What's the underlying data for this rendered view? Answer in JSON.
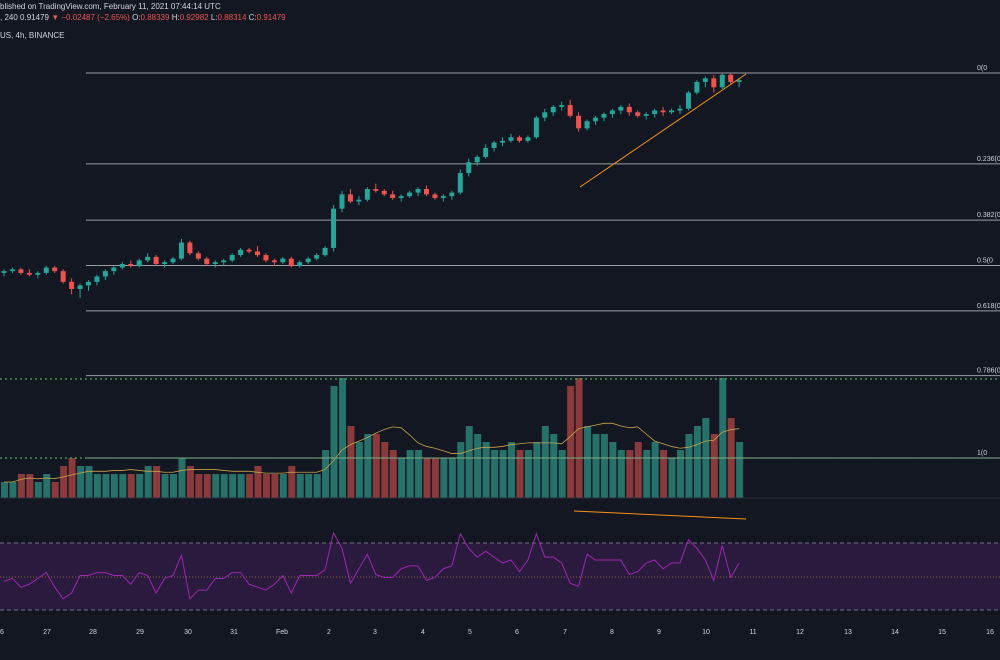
{
  "header": {
    "published": "blished on TradingView.com, February 11, 2021 07:44:14 UTC",
    "ohlc": {
      "interval": ", 240",
      "last": "0.91479",
      "change": "−0.02487 (−2.65%)",
      "open_label": "O:",
      "open": "0.88339",
      "high_label": "H:",
      "high": "0.92982",
      "low_label": "L:",
      "low": "0.88314",
      "close_label": "C:",
      "close": "0.91479"
    },
    "symbol": "US, 4h, BINANCE"
  },
  "colors": {
    "background": "#131722",
    "bull": "#26a69a",
    "bear": "#ef5350",
    "bull_volume": "#26726a",
    "bear_volume": "#8a3a3a",
    "fib_line": "#9b9ea6",
    "support": "#4caf50",
    "trendline": "#f7931a",
    "rsi_line": "#9c27b0",
    "rsi_band": "#2a1a3d"
  },
  "chart_data": {
    "type": "candlestick",
    "fib_levels": [
      {
        "level": 0,
        "label": "0(0"
      },
      {
        "level": 0.236,
        "label": "0.236(0"
      },
      {
        "level": 0.382,
        "label": "0.382(0"
      },
      {
        "level": 0.5,
        "label": "0.5(0"
      },
      {
        "level": 0.618,
        "label": "0.618(0"
      },
      {
        "level": 0.786,
        "label": "0.786(0"
      },
      {
        "level": 1,
        "label": "1(0"
      }
    ],
    "x_labels": [
      "6",
      "27",
      "28",
      "29",
      "30",
      "31",
      "Feb",
      "2",
      "3",
      "4",
      "5",
      "6",
      "7",
      "8",
      "9",
      "10",
      "11",
      "12",
      "13",
      "14",
      "15",
      "16"
    ],
    "candles_scale": "chart units 0-100",
    "candles": [
      [
        44,
        45,
        43,
        44.5
      ],
      [
        44.5,
        45.5,
        44,
        45
      ],
      [
        45,
        45.5,
        43.5,
        44
      ],
      [
        44,
        45,
        43,
        43.5
      ],
      [
        43.5,
        44.5,
        42.5,
        44
      ],
      [
        44,
        46,
        43.5,
        45.5
      ],
      [
        45.5,
        46,
        44,
        44.5
      ],
      [
        44.5,
        45,
        41,
        41.5
      ],
      [
        41.5,
        42.5,
        38,
        39.5
      ],
      [
        39.5,
        41,
        37,
        40.5
      ],
      [
        40.5,
        42,
        39,
        41.5
      ],
      [
        41.5,
        43.5,
        40.5,
        43
      ],
      [
        43,
        45,
        42,
        44.5
      ],
      [
        44.5,
        46,
        43.5,
        45.5
      ],
      [
        45.5,
        47,
        45,
        46.5
      ],
      [
        46.5,
        47.5,
        45.5,
        46
      ],
      [
        46,
        48,
        45.5,
        47.5
      ],
      [
        47.5,
        49.5,
        47,
        48.5
      ],
      [
        48.5,
        49,
        46,
        46.5
      ],
      [
        46.5,
        47.5,
        45.5,
        47
      ],
      [
        47,
        48.5,
        46.5,
        48
      ],
      [
        48,
        53.5,
        47.5,
        52.5
      ],
      [
        52.5,
        53,
        49,
        49.5
      ],
      [
        49.5,
        50,
        47.5,
        48
      ],
      [
        48,
        48.5,
        46,
        46.5
      ],
      [
        46.5,
        47.5,
        45.5,
        47
      ],
      [
        47,
        48,
        46,
        47.5
      ],
      [
        47.5,
        49.5,
        47,
        49
      ],
      [
        49,
        51,
        48.5,
        50.5
      ],
      [
        50.5,
        51,
        49.5,
        50
      ],
      [
        50,
        51.5,
        48.5,
        49
      ],
      [
        49,
        49.5,
        47,
        47.5
      ],
      [
        47.5,
        48,
        46,
        47
      ],
      [
        47,
        48.5,
        46.5,
        48
      ],
      [
        48,
        48.5,
        45.5,
        46
      ],
      [
        46,
        47.5,
        45.5,
        47
      ],
      [
        47,
        48.5,
        46.5,
        48
      ],
      [
        48,
        49.5,
        47.5,
        49
      ],
      [
        49,
        51.5,
        48.5,
        51
      ],
      [
        51,
        63,
        50,
        62
      ],
      [
        62,
        67,
        61,
        66
      ],
      [
        66,
        67.5,
        63.5,
        64
      ],
      [
        64,
        65.5,
        63,
        64.5
      ],
      [
        64.5,
        68,
        64,
        67.5
      ],
      [
        67.5,
        69,
        66.5,
        67
      ],
      [
        67,
        67.5,
        65.5,
        66
      ],
      [
        66,
        67,
        64.5,
        65
      ],
      [
        65,
        66,
        64,
        65.5
      ],
      [
        65.5,
        67,
        65,
        66.5
      ],
      [
        66.5,
        68,
        65.5,
        67.5
      ],
      [
        67.5,
        68.5,
        65.5,
        66
      ],
      [
        66,
        66.5,
        64.5,
        65
      ],
      [
        65,
        66,
        64,
        65.5
      ],
      [
        65.5,
        67,
        64.5,
        66.5
      ],
      [
        66.5,
        73,
        66,
        72
      ],
      [
        72,
        76,
        71,
        75
      ],
      [
        75,
        77,
        74,
        76.5
      ],
      [
        76.5,
        80,
        76,
        79
      ],
      [
        79,
        81,
        78,
        80.5
      ],
      [
        80.5,
        82,
        79.5,
        81
      ],
      [
        81,
        83,
        80.5,
        82
      ],
      [
        82,
        82.5,
        80.5,
        81
      ],
      [
        81,
        82.5,
        80.5,
        82
      ],
      [
        82,
        88,
        81.5,
        87.5
      ],
      [
        87.5,
        90,
        86.5,
        89
      ],
      [
        89,
        91,
        88,
        90.5
      ],
      [
        90.5,
        92,
        89.5,
        91
      ],
      [
        91,
        92.5,
        87.5,
        88
      ],
      [
        88,
        89,
        83.5,
        84.5
      ],
      [
        84.5,
        87,
        84,
        86.5
      ],
      [
        86.5,
        88,
        85.5,
        87.5
      ],
      [
        87.5,
        89,
        86.5,
        88.5
      ],
      [
        88.5,
        90,
        87.5,
        89.5
      ],
      [
        89.5,
        91,
        88.5,
        90.5
      ],
      [
        90.5,
        91.5,
        88,
        89
      ],
      [
        89,
        89.5,
        87.5,
        88
      ],
      [
        88,
        89,
        87,
        88.5
      ],
      [
        88.5,
        90,
        87.5,
        89.5
      ],
      [
        89.5,
        90.5,
        88,
        89
      ],
      [
        89,
        90,
        88.5,
        89.5
      ],
      [
        89.5,
        91,
        88.5,
        90
      ],
      [
        90,
        95,
        89.5,
        94.5
      ],
      [
        94.5,
        98,
        94,
        97.5
      ],
      [
        97.5,
        99,
        96,
        98.5
      ],
      [
        98.5,
        99.5,
        94.5,
        96
      ],
      [
        96,
        100,
        95.5,
        99.5
      ],
      [
        99.5,
        100,
        97,
        97.5
      ],
      [
        97.5,
        98.5,
        96,
        98
      ]
    ],
    "volumes": [
      2,
      2,
      3,
      3,
      2,
      3,
      2,
      4,
      5,
      4,
      4,
      3,
      3,
      3,
      3,
      3,
      3,
      4,
      4,
      3,
      3,
      5,
      4,
      3,
      3,
      3,
      3,
      3,
      3,
      3,
      4,
      3,
      3,
      3,
      4,
      3,
      3,
      3,
      6,
      14,
      15,
      9,
      7,
      8,
      8,
      7,
      6,
      5,
      6,
      6,
      5,
      5,
      5,
      5,
      7,
      9,
      8,
      7,
      6,
      6,
      7,
      6,
      6,
      7,
      9,
      8,
      6,
      14,
      15,
      9,
      8,
      8,
      7,
      6,
      6,
      7,
      6,
      7,
      6,
      5,
      6,
      8,
      9,
      10,
      8,
      15,
      10,
      7
    ],
    "rsi_range": [
      0,
      100
    ],
    "rsi_bands": [
      70,
      50,
      30
    ]
  },
  "price_axis_labels": {
    "right_top": "0(0"
  }
}
